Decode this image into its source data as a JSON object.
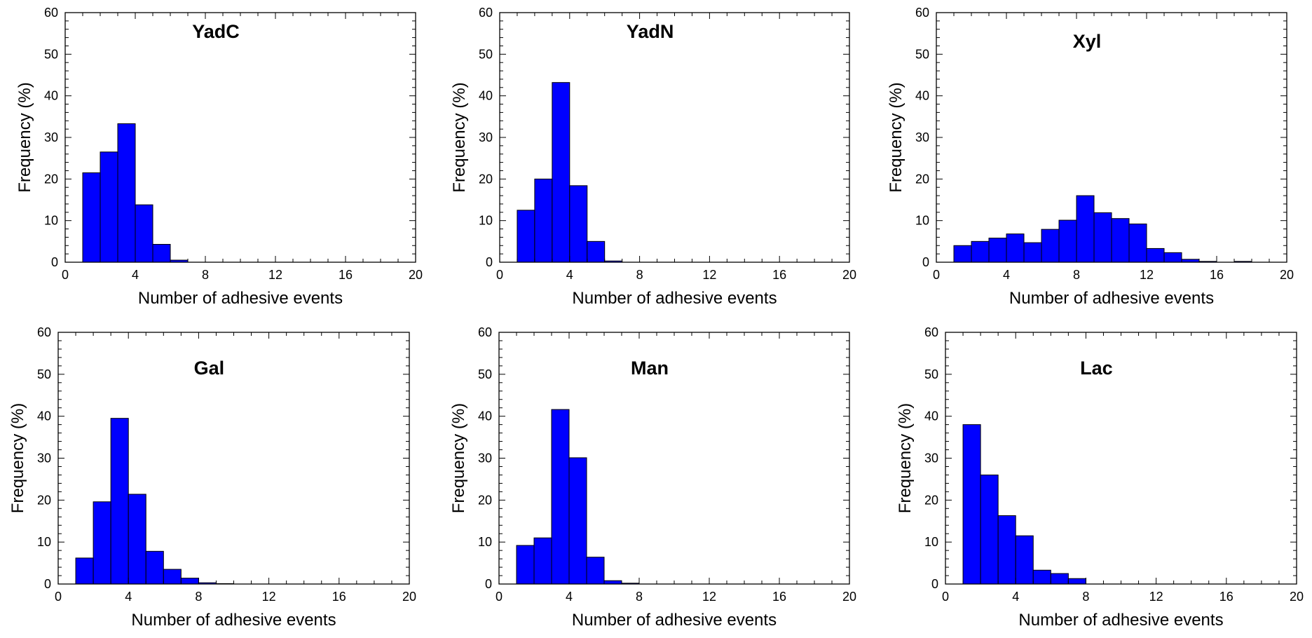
{
  "colors": {
    "bar_fill": "#0000ff",
    "bar_stroke": "#000000",
    "axis": "#000000",
    "background": "#ffffff"
  },
  "chart_data": [
    {
      "type": "bar",
      "title": "YadC",
      "xlabel": "Number of adhesive events",
      "ylabel": "Frequency (%)",
      "xlim": [
        0,
        20
      ],
      "ylim": [
        0,
        60
      ],
      "xticks": [
        "0",
        "4",
        "8",
        "12",
        "16",
        "20"
      ],
      "yticks": [
        "0",
        "10",
        "20",
        "30",
        "40",
        "50",
        "60"
      ],
      "bin_width": 1,
      "bins": [
        1,
        2,
        3,
        4,
        5,
        6,
        7
      ],
      "values": [
        21.5,
        26.5,
        33.3,
        13.8,
        4.3,
        0.5,
        0
      ],
      "grid": false
    },
    {
      "type": "bar",
      "title": "YadN",
      "xlabel": "Number of adhesive events",
      "ylabel": "Frequency (%)",
      "xlim": [
        0,
        20
      ],
      "ylim": [
        0,
        60
      ],
      "xticks": [
        "0",
        "4",
        "8",
        "12",
        "16",
        "20"
      ],
      "yticks": [
        "0",
        "10",
        "20",
        "30",
        "40",
        "50",
        "60"
      ],
      "bin_width": 1,
      "bins": [
        1,
        2,
        3,
        4,
        5,
        6
      ],
      "values": [
        12.5,
        20,
        43.2,
        18.4,
        5,
        0.3
      ],
      "grid": false
    },
    {
      "type": "bar",
      "title": "Xyl",
      "xlabel": "Number of adhesive events",
      "ylabel": "Frequency (%)",
      "xlim": [
        0,
        20
      ],
      "ylim": [
        0,
        60
      ],
      "xticks": [
        "0",
        "4",
        "8",
        "12",
        "16",
        "20"
      ],
      "yticks": [
        "0",
        "10",
        "20",
        "30",
        "40",
        "50",
        "60"
      ],
      "bin_width": 1,
      "bins": [
        1,
        2,
        3,
        4,
        5,
        6,
        7,
        8,
        9,
        10,
        11,
        12,
        13,
        14,
        15,
        16,
        17
      ],
      "values": [
        4,
        5,
        5.8,
        6.8,
        4.7,
        7.9,
        10.1,
        16,
        11.9,
        10.5,
        9.2,
        3.3,
        2.3,
        0.7,
        0.2,
        0,
        0.2
      ],
      "grid": false
    },
    {
      "type": "bar",
      "title": "Gal",
      "xlabel": "Number of adhesive events",
      "ylabel": "Frequency (%)",
      "xlim": [
        0,
        20
      ],
      "ylim": [
        0,
        60
      ],
      "xticks": [
        "0",
        "4",
        "8",
        "12",
        "16",
        "20"
      ],
      "yticks": [
        "0",
        "10",
        "20",
        "30",
        "40",
        "50",
        "60"
      ],
      "bin_width": 1,
      "bins": [
        1,
        2,
        3,
        4,
        5,
        6,
        7,
        8,
        9
      ],
      "values": [
        6.2,
        19.6,
        39.5,
        21.4,
        7.8,
        3.5,
        1.4,
        0.3,
        0.1
      ],
      "grid": false
    },
    {
      "type": "bar",
      "title": "Man",
      "xlabel": "Number of adhesive events",
      "ylabel": "Frequency (%)",
      "xlim": [
        0,
        20
      ],
      "ylim": [
        0,
        60
      ],
      "xticks": [
        "0",
        "4",
        "8",
        "12",
        "16",
        "20"
      ],
      "yticks": [
        "0",
        "10",
        "20",
        "30",
        "40",
        "50",
        "60"
      ],
      "bin_width": 1,
      "bins": [
        1,
        2,
        3,
        4,
        5,
        6,
        7
      ],
      "values": [
        9.2,
        11,
        41.6,
        30.1,
        6.4,
        0.8,
        0.2
      ],
      "grid": false
    },
    {
      "type": "bar",
      "title": "Lac",
      "xlabel": "Number of adhesive events",
      "ylabel": "Frequency (%)",
      "xlim": [
        0,
        20
      ],
      "ylim": [
        0,
        60
      ],
      "xticks": [
        "0",
        "4",
        "8",
        "12",
        "16",
        "20"
      ],
      "yticks": [
        "0",
        "10",
        "20",
        "30",
        "40",
        "50",
        "60"
      ],
      "bin_width": 1,
      "bins": [
        1,
        2,
        3,
        4,
        5,
        6,
        7
      ],
      "values": [
        38,
        26,
        16.3,
        11.5,
        3.3,
        2.5,
        1.3
      ],
      "grid": false
    }
  ]
}
